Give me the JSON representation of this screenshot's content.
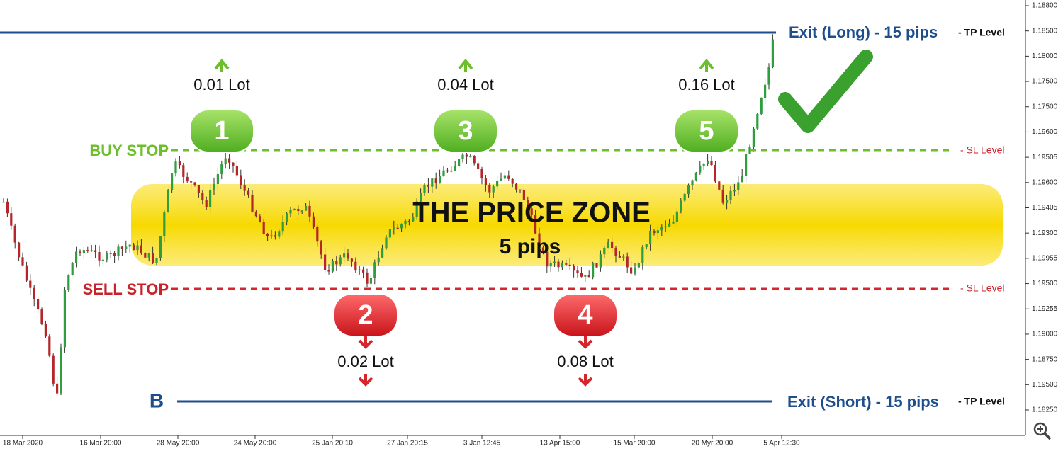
{
  "y_axis_labels": [
    "1.18800",
    "1.18500",
    "1.18000",
    "1.17500",
    "1.17500",
    "1.19600",
    "1.19505",
    "1.19600",
    "1.19405",
    "1.19300",
    "1.19955",
    "1.19500",
    "1.19255",
    "1.19000",
    "1.18750",
    "1.19500",
    "1.18250"
  ],
  "x_axis_labels": [
    "18 Mar 2020",
    "16 Mar 20:00",
    "28 May 20:00",
    "24 May 20:00",
    "25 Jan 20:10",
    "27 Jan 20:15",
    "3 Jan 12:45",
    "13 Apr 15:00",
    "15 Mar 20:00",
    "20 Myr 20:00",
    "5 Apr 12:30"
  ],
  "zone": {
    "title": "THE PRICE ZONE",
    "subtitle": "5 pips"
  },
  "levels": {
    "buy_stop": "BUY STOP",
    "sell_stop": "SELL STOP",
    "sl_top": "- SL Level",
    "sl_bottom": "- SL Level",
    "exit_long": "Exit (Long) - 15 pips",
    "tp_top": "- TP Level",
    "exit_short": "Exit (Short) - 15 pips",
    "tp_bottom": "- TP Level",
    "b_marker": "B"
  },
  "orders": [
    {
      "number": "1",
      "lot": "0.01 Lot"
    },
    {
      "number": "2",
      "lot": "0.02 Lot"
    },
    {
      "number": "3",
      "lot": "0.04 Lot"
    },
    {
      "number": "4",
      "lot": "0.08 Lot"
    },
    {
      "number": "5",
      "lot": "0.16 Lot"
    }
  ]
}
